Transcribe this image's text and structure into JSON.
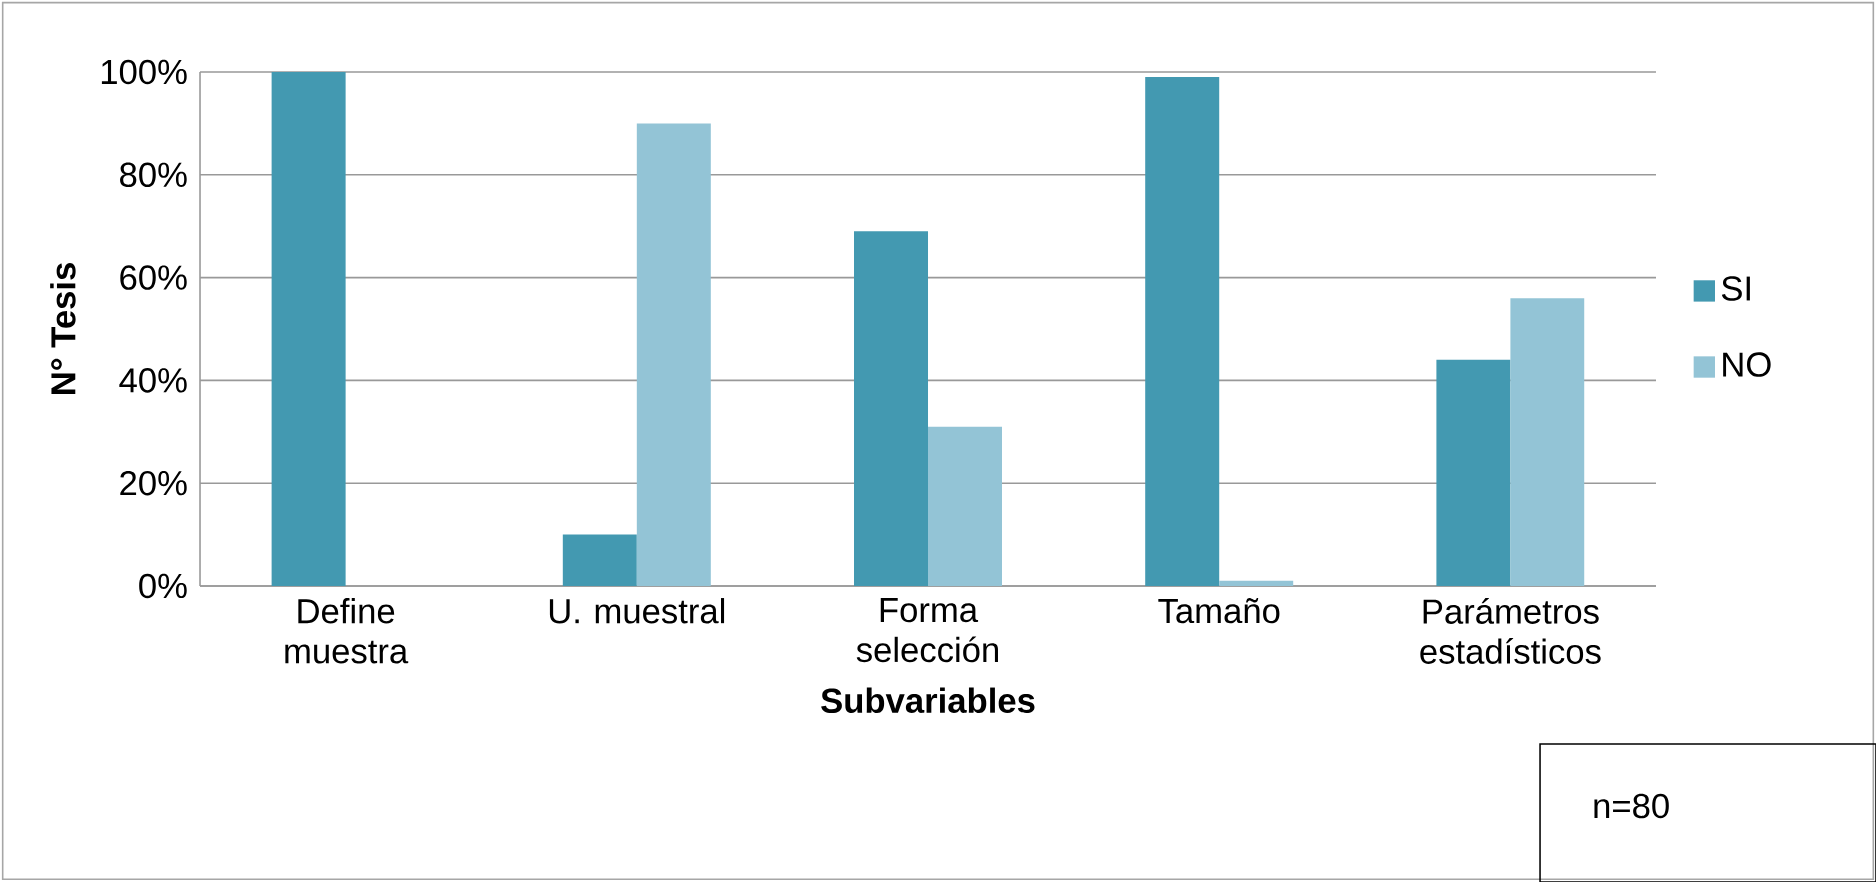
{
  "chart_data": {
    "type": "bar",
    "xlabel": "Subvariables",
    "ylabel": "N° Tesis",
    "categories": [
      "Define muestra",
      "U. muestral",
      "Forma selección",
      "Tamaño",
      "Parámetros estadísticos"
    ],
    "series": [
      {
        "name": "SI",
        "color": "#4399b1",
        "values": [
          100,
          10,
          69,
          99,
          44
        ]
      },
      {
        "name": "NO",
        "color": "#93c4d6",
        "values": [
          0,
          90,
          31,
          1,
          56
        ]
      }
    ],
    "ylim": [
      0,
      100
    ],
    "yticks": [
      {
        "value": 0,
        "label": "0%"
      },
      {
        "value": 20,
        "label": "20%"
      },
      {
        "value": 40,
        "label": "40%"
      },
      {
        "value": 60,
        "label": "60%"
      },
      {
        "value": 80,
        "label": "80%"
      },
      {
        "value": 100,
        "label": "100%"
      }
    ],
    "grid": "y",
    "legend": "right",
    "annotations": [
      "n=80"
    ]
  }
}
